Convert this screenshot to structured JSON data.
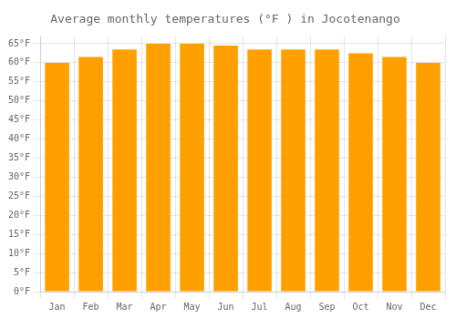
{
  "chart_data": {
    "type": "bar",
    "title": "Average monthly temperatures (°F ) in Jocotenango",
    "categories": [
      "Jan",
      "Feb",
      "Mar",
      "Apr",
      "May",
      "Jun",
      "Jul",
      "Aug",
      "Sep",
      "Oct",
      "Nov",
      "Dec"
    ],
    "values": [
      60,
      61.5,
      63.5,
      65,
      65,
      64.5,
      63.5,
      63.5,
      63.5,
      62.5,
      61.5,
      60
    ],
    "color": "#FFA000",
    "ylim": [
      0,
      67
    ],
    "yticks": [
      {
        "value": 0,
        "label": "0°F"
      },
      {
        "value": 5,
        "label": "5°F"
      },
      {
        "value": 10,
        "label": "10°F"
      },
      {
        "value": 15,
        "label": "15°F"
      },
      {
        "value": 20,
        "label": "20°F"
      },
      {
        "value": 25,
        "label": "25°F"
      },
      {
        "value": 30,
        "label": "30°F"
      },
      {
        "value": 35,
        "label": "35°F"
      },
      {
        "value": 40,
        "label": "40°F"
      },
      {
        "value": 45,
        "label": "45°F"
      },
      {
        "value": 50,
        "label": "50°F"
      },
      {
        "value": 55,
        "label": "55°F"
      },
      {
        "value": 60,
        "label": "60°F"
      },
      {
        "value": 65,
        "label": "65°F"
      }
    ],
    "grid": true
  }
}
